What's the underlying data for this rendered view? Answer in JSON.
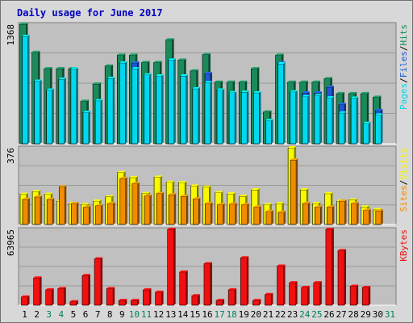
{
  "title": "Daily usage for June 2017",
  "colors": {
    "hits": "#1a8a5a",
    "files": "#1f57d6",
    "pages": "#00d8f0",
    "visits": "#f8f800",
    "sites": "#f08c00",
    "kbytes": "#f01010",
    "weekday_label": "#000000",
    "weekend_label": "#00805a"
  },
  "chart_data": [
    {
      "type": "bar",
      "name": "hits-files-pages",
      "y_max_label": "1368",
      "ylim": [
        0,
        1368
      ],
      "right_labels": [
        "Pages",
        "Files",
        "Hits"
      ],
      "categories": [
        "1",
        "2",
        "3",
        "4",
        "5",
        "6",
        "7",
        "8",
        "9",
        "10",
        "11",
        "12",
        "13",
        "14",
        "15",
        "16",
        "17",
        "18",
        "19",
        "20",
        "21",
        "22",
        "23",
        "24",
        "25",
        "26",
        "27",
        "28",
        "29",
        "30",
        "31"
      ],
      "series": [
        {
          "name": "Hits",
          "values": [
            1368,
            1046,
            860,
            860,
            860,
            486,
            684,
            890,
            1015,
            1015,
            930,
            930,
            1190,
            958,
            834,
            1020,
            705,
            705,
            705,
            860,
            364,
            1015,
            705,
            705,
            705,
            745,
            574,
            574,
            574,
            533,
            0
          ]
        },
        {
          "name": "Files",
          "values": [
            1228,
            716,
            613,
            738,
            613,
            358,
            363,
            445,
            925,
            925,
            716,
            716,
            958,
            700,
            630,
            803,
            615,
            560,
            560,
            560,
            248,
            925,
            581,
            581,
            581,
            646,
            450,
            450,
            233,
            380,
            0
          ]
        },
        {
          "name": "Pages",
          "values": [
            1228,
            716,
            613,
            738,
            856,
            358,
            492,
            747,
            925,
            858,
            788,
            777,
            958,
            776,
            630,
            700,
            615,
            585,
            591,
            583,
            266,
            915,
            594,
            540,
            551,
            526,
            352,
            522,
            233,
            329,
            0
          ]
        }
      ],
      "x_labels": [
        {
          "text": "1",
          "weekend": false
        },
        {
          "text": "2",
          "weekend": false
        },
        {
          "text": "3",
          "weekend": true
        },
        {
          "text": "4",
          "weekend": true
        },
        {
          "text": "5",
          "weekend": false
        },
        {
          "text": "6",
          "weekend": false
        },
        {
          "text": "7",
          "weekend": false
        },
        {
          "text": "8",
          "weekend": false
        },
        {
          "text": "9",
          "weekend": false
        },
        {
          "text": "10",
          "weekend": true
        },
        {
          "text": "11",
          "weekend": true
        },
        {
          "text": "12",
          "weekend": false
        },
        {
          "text": "13",
          "weekend": false
        },
        {
          "text": "14",
          "weekend": false
        },
        {
          "text": "15",
          "weekend": false
        },
        {
          "text": "16",
          "weekend": false
        },
        {
          "text": "17",
          "weekend": true
        },
        {
          "text": "18",
          "weekend": true
        },
        {
          "text": "19",
          "weekend": false
        },
        {
          "text": "20",
          "weekend": false
        },
        {
          "text": "21",
          "weekend": false
        },
        {
          "text": "22",
          "weekend": false
        },
        {
          "text": "23",
          "weekend": false
        },
        {
          "text": "24",
          "weekend": true
        },
        {
          "text": "25",
          "weekend": true
        },
        {
          "text": "26",
          "weekend": false
        },
        {
          "text": "27",
          "weekend": false
        },
        {
          "text": "28",
          "weekend": false
        },
        {
          "text": "29",
          "weekend": false
        },
        {
          "text": "30",
          "weekend": false
        },
        {
          "text": "31",
          "weekend": true
        }
      ]
    },
    {
      "type": "bar",
      "name": "visits-sites",
      "y_max_label": "376",
      "ylim": [
        0,
        376
      ],
      "right_labels": [
        "Sites",
        "Visits"
      ],
      "series": [
        {
          "name": "Visits",
          "values": [
            148,
            162,
            148,
            115,
            103,
            97,
            115,
            136,
            255,
            230,
            152,
            232,
            207,
            205,
            188,
            183,
            156,
            150,
            138,
            170,
            97,
            102,
            376,
            170,
            103,
            151,
            115,
            120,
            86,
            72,
            0
          ]
        },
        {
          "name": "Sites",
          "values": [
            123,
            135,
            123,
            185,
            103,
            85,
            92,
            103,
            225,
            200,
            140,
            152,
            146,
            138,
            125,
            103,
            97,
            100,
            97,
            85,
            64,
            60,
            316,
            103,
            85,
            85,
            115,
            103,
            70,
            67,
            0
          ]
        }
      ]
    },
    {
      "type": "bar",
      "name": "kbytes",
      "y_max_label": "63965",
      "ylim": [
        0,
        63965
      ],
      "right_labels": [
        "KBytes"
      ],
      "series": [
        {
          "name": "KBytes",
          "values": [
            7000,
            23000,
            13000,
            14000,
            3000,
            25000,
            39000,
            14000,
            4000,
            4000,
            13000,
            11000,
            63965,
            28000,
            8000,
            35000,
            4000,
            13000,
            40000,
            4000,
            9000,
            33000,
            19000,
            15000,
            19000,
            63965,
            46000,
            16000,
            15000,
            0,
            0
          ]
        }
      ]
    }
  ]
}
